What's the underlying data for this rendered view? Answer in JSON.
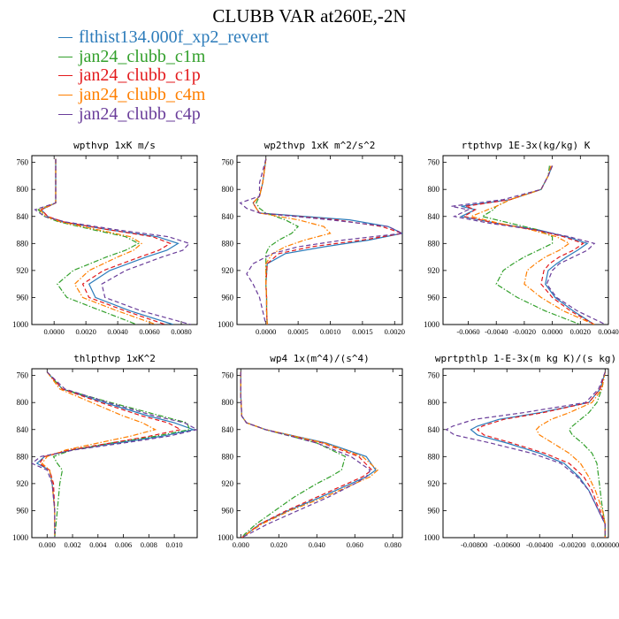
{
  "title": "CLUBB VAR at260E,-2N",
  "legend": [
    {
      "label": "flthist134.000f_xp2_revert",
      "color": "#2b7bba"
    },
    {
      "label": "jan24_clubb_c1m",
      "color": "#33a02c"
    },
    {
      "label": "jan24_clubb_c1p",
      "color": "#e31a1c"
    },
    {
      "label": "jan24_clubb_c4m",
      "color": "#ff7f00"
    },
    {
      "label": "jan24_clubb_c4p",
      "color": "#6a3d9a"
    }
  ],
  "chart_data": [
    {
      "type": "line",
      "title": "wpthvp  1xK m/s",
      "xlim": [
        -0.0014,
        0.009
      ],
      "xticks": [
        0.0,
        0.002,
        0.004,
        0.006,
        0.008
      ],
      "xtick_labels": [
        "0.0000",
        "0.0020",
        "0.0040",
        "0.0060",
        "0.0080"
      ],
      "ylim": [
        750,
        1000
      ],
      "yticks": [
        760,
        800,
        840,
        880,
        920,
        960,
        1000
      ],
      "y": [
        755,
        780,
        800,
        820,
        830,
        840,
        848,
        860,
        870,
        880,
        890,
        900,
        920,
        940,
        960,
        980,
        1000
      ],
      "series": [
        {
          "name": "flthist134.000f_xp2_revert",
          "style": "solid",
          "values": [
            0.0001,
            0.0001,
            0.0001,
            0.0001,
            -0.0008,
            -0.0004,
            0.0005,
            0.0035,
            0.0065,
            0.0078,
            0.0071,
            0.0058,
            0.0035,
            0.0022,
            0.0026,
            0.0048,
            0.0075
          ]
        },
        {
          "name": "jan24_clubb_c1m",
          "style": "dashdot",
          "values": [
            0.0001,
            0.0001,
            0.0001,
            0.0001,
            -0.001,
            -0.0006,
            0.0003,
            0.0025,
            0.0045,
            0.0053,
            0.0045,
            0.0033,
            0.0012,
            0.0002,
            0.0008,
            0.003,
            0.0052
          ]
        },
        {
          "name": "jan24_clubb_c1p",
          "style": "dashed",
          "values": [
            0.0001,
            0.0001,
            0.0001,
            0.0001,
            -0.0008,
            -0.0004,
            0.0006,
            0.0035,
            0.0062,
            0.0073,
            0.0066,
            0.0054,
            0.0031,
            0.0018,
            0.0022,
            0.0045,
            0.007
          ]
        },
        {
          "name": "jan24_clubb_c4m",
          "style": "dashdot",
          "values": [
            0.0001,
            0.0001,
            0.0001,
            0.0001,
            -0.0009,
            -0.0005,
            0.0004,
            0.0028,
            0.0048,
            0.0055,
            0.005,
            0.004,
            0.0022,
            0.0013,
            0.0018,
            0.004,
            0.0064
          ]
        },
        {
          "name": "jan24_clubb_c4p",
          "style": "dashed",
          "values": [
            0.0001,
            0.0001,
            0.0001,
            0.0001,
            -0.0012,
            -0.0006,
            0.0007,
            0.004,
            0.0072,
            0.0085,
            0.0081,
            0.0068,
            0.0045,
            0.003,
            0.0032,
            0.0055,
            0.0086
          ]
        }
      ]
    },
    {
      "type": "line",
      "title": "wp2thvp  1xK m^2/s^2",
      "xlim": [
        -0.00045,
        0.00212
      ],
      "xticks": [
        0.0,
        0.0005,
        0.001,
        0.0015,
        0.002
      ],
      "xtick_labels": [
        "0.0000",
        "0.0005",
        "0.0010",
        "0.0015",
        "0.0020"
      ],
      "ylim": [
        750,
        1000
      ],
      "yticks": [
        760,
        800,
        840,
        880,
        920,
        960,
        1000
      ],
      "y": [
        755,
        790,
        810,
        820,
        828,
        835,
        845,
        855,
        865,
        875,
        885,
        895,
        910,
        925,
        940,
        960,
        980,
        1000
      ],
      "series": [
        {
          "name": "flthist134.000f_xp2_revert",
          "style": "solid",
          "values": [
            0.0,
            -5e-05,
            -0.0001,
            -0.0002,
            -0.00015,
            -0.0001,
            0.0013,
            0.0019,
            0.00212,
            0.0016,
            0.0009,
            0.0003,
            2e-05,
            1e-05,
            0.0,
            1e-05,
            1e-05,
            2e-05
          ]
        },
        {
          "name": "jan24_clubb_c1m",
          "style": "dashdot",
          "values": [
            0.0,
            -5e-05,
            -0.0001,
            -0.00015,
            -0.0001,
            0.0,
            0.0003,
            0.0005,
            0.0004,
            0.0002,
            5e-05,
            0.0,
            0.0,
            0.0,
            0.0,
            1e-05,
            1e-05,
            2e-05
          ]
        },
        {
          "name": "jan24_clubb_c1p",
          "style": "dashed",
          "values": [
            0.0,
            -5e-05,
            -0.0001,
            -0.0002,
            -0.00015,
            -0.0001,
            0.0011,
            0.0018,
            0.00212,
            0.0015,
            0.0007,
            0.0002,
            2e-05,
            1e-05,
            0.0,
            1e-05,
            1e-05,
            2e-05
          ]
        },
        {
          "name": "jan24_clubb_c4m",
          "style": "dashdot",
          "values": [
            0.0,
            -5e-05,
            -0.0001,
            -0.0002,
            -0.00015,
            -0.0001,
            0.0005,
            0.0009,
            0.001,
            0.0006,
            0.0003,
            0.0001,
            0.0,
            0.0,
            0.0,
            1e-05,
            1e-05,
            2e-05
          ]
        },
        {
          "name": "jan24_clubb_c4p",
          "style": "dashed",
          "values": [
            0.0,
            -0.0001,
            -0.0001,
            -0.0004,
            -0.0003,
            -0.0001,
            0.001,
            0.0019,
            0.00212,
            0.0012,
            0.0005,
            0.0001,
            -0.0002,
            -0.0003,
            -0.0002,
            -0.0001,
            -5e-05,
            0.0
          ]
        }
      ]
    },
    {
      "type": "line",
      "title": "rtpthvp  1E-3x(kg/kg) K",
      "xlim": [
        -0.0078,
        0.004
      ],
      "xticks": [
        -0.006,
        -0.004,
        -0.002,
        0.0,
        0.002,
        0.004
      ],
      "xtick_labels": [
        "-0.0060",
        "-0.0040",
        "-0.0020",
        "0.0000",
        "0.0020",
        "0.0040"
      ],
      "ylim": [
        750,
        1000
      ],
      "yticks": [
        760,
        800,
        840,
        880,
        920,
        960,
        1000
      ],
      "y": [
        765,
        780,
        800,
        815,
        825,
        830,
        840,
        850,
        860,
        870,
        880,
        890,
        900,
        910,
        920,
        940,
        960,
        980,
        1000
      ],
      "series": [
        {
          "name": "flthist134.000f_xp2_revert",
          "style": "solid",
          "values": [
            0.0,
            -0.0003,
            -0.0008,
            -0.003,
            -0.0065,
            -0.0055,
            -0.0065,
            -0.004,
            -0.001,
            0.001,
            0.0025,
            0.0018,
            0.001,
            0.0003,
            -0.0003,
            -0.0005,
            0.0002,
            0.0015,
            0.003
          ]
        },
        {
          "name": "jan24_clubb_c1m",
          "style": "dashdot",
          "values": [
            -0.0002,
            -0.0003,
            -0.0008,
            -0.003,
            -0.004,
            -0.0042,
            -0.005,
            -0.003,
            -0.001,
            0.0,
            0.0,
            -0.001,
            -0.002,
            -0.0028,
            -0.0035,
            -0.004,
            -0.0025,
            -0.0005,
            0.002
          ]
        },
        {
          "name": "jan24_clubb_c1p",
          "style": "dashed",
          "values": [
            0.0,
            -0.0003,
            -0.0008,
            -0.003,
            -0.0062,
            -0.0055,
            -0.0063,
            -0.004,
            -0.0012,
            0.0008,
            0.0022,
            0.0015,
            0.0005,
            -0.0002,
            -0.0006,
            -0.0008,
            0.0,
            0.0013,
            0.003
          ]
        },
        {
          "name": "jan24_clubb_c4m",
          "style": "dashdot",
          "values": [
            -0.0001,
            -0.0003,
            -0.0008,
            -0.003,
            -0.004,
            -0.0046,
            -0.0058,
            -0.0038,
            -0.0015,
            0.0003,
            0.0012,
            0.0005,
            -0.0005,
            -0.0012,
            -0.0018,
            -0.002,
            -0.0008,
            0.0008,
            0.003
          ]
        },
        {
          "name": "jan24_clubb_c4p",
          "style": "dashed",
          "values": [
            0.0,
            -0.0003,
            -0.0008,
            -0.0035,
            -0.0072,
            -0.006,
            -0.007,
            -0.0045,
            -0.0012,
            0.0012,
            0.003,
            0.0025,
            0.0015,
            0.0005,
            0.0,
            -0.0004,
            0.0003,
            0.0018,
            0.0038
          ]
        }
      ]
    },
    {
      "type": "line",
      "title": "thlpthvp  1xK^2",
      "xlim": [
        -0.0012,
        0.0118
      ],
      "xticks": [
        0.0,
        0.002,
        0.004,
        0.006,
        0.008,
        0.01
      ],
      "xtick_labels": [
        "0.000",
        "0.002",
        "0.004",
        "0.006",
        "0.008",
        "0.010"
      ],
      "ylim": [
        750,
        1000
      ],
      "yticks": [
        760,
        800,
        840,
        880,
        920,
        960,
        1000
      ],
      "y": [
        755,
        780,
        800,
        820,
        830,
        840,
        850,
        860,
        870,
        880,
        890,
        900,
        920,
        960,
        1000
      ],
      "series": [
        {
          "name": "flthist134.000f_xp2_revert",
          "style": "solid",
          "values": [
            0.0,
            0.0012,
            0.0045,
            0.008,
            0.01,
            0.0115,
            0.009,
            0.0055,
            0.002,
            -0.0002,
            -0.0008,
            0.0002,
            0.0004,
            0.0006,
            0.0006
          ]
        },
        {
          "name": "jan24_clubb_c1m",
          "style": "dashdot",
          "values": [
            0.0,
            0.0012,
            0.005,
            0.009,
            0.011,
            0.0112,
            0.0085,
            0.005,
            0.002,
            0.0005,
            0.0008,
            0.0012,
            0.001,
            0.0008,
            0.0006
          ]
        },
        {
          "name": "jan24_clubb_c1p",
          "style": "dashed",
          "values": [
            0.0,
            0.0012,
            0.0042,
            0.0075,
            0.0095,
            0.0105,
            0.008,
            0.005,
            0.0018,
            -0.0002,
            -0.0006,
            0.0002,
            0.0005,
            0.0006,
            0.0006
          ]
        },
        {
          "name": "jan24_clubb_c4m",
          "style": "dashdot",
          "values": [
            0.0,
            0.001,
            0.0035,
            0.006,
            0.0075,
            0.0085,
            0.0065,
            0.004,
            0.0015,
            0.0,
            -0.0004,
            0.0002,
            0.0004,
            0.0006,
            0.0006
          ]
        },
        {
          "name": "jan24_clubb_c4p",
          "style": "dashed",
          "values": [
            0.0,
            0.0014,
            0.0048,
            0.0085,
            0.0108,
            0.0118,
            0.0095,
            0.006,
            0.0022,
            -0.0005,
            -0.0012,
            0.0,
            0.0004,
            0.0006,
            0.0006
          ]
        }
      ]
    },
    {
      "type": "line",
      "title": "wp4  1x(m^4)/(s^4)",
      "xlim": [
        -0.002,
        0.085
      ],
      "xticks": [
        0.0,
        0.02,
        0.04,
        0.06,
        0.08
      ],
      "xtick_labels": [
        "0.000",
        "0.020",
        "0.040",
        "0.060",
        "0.080"
      ],
      "ylim": [
        750,
        1000
      ],
      "yticks": [
        760,
        800,
        840,
        880,
        920,
        960,
        1000
      ],
      "y": [
        755,
        790,
        820,
        830,
        840,
        860,
        880,
        900,
        910,
        920,
        940,
        960,
        980,
        995,
        1000
      ],
      "series": [
        {
          "name": "flthist134.000f_xp2_revert",
          "style": "solid",
          "values": [
            0.0,
            0.0,
            0.0005,
            0.003,
            0.013,
            0.045,
            0.066,
            0.071,
            0.066,
            0.058,
            0.042,
            0.025,
            0.01,
            0.003,
            0.0005
          ]
        },
        {
          "name": "jan24_clubb_c1m",
          "style": "dashdot",
          "values": [
            0.0,
            0.0,
            0.0005,
            0.003,
            0.013,
            0.04,
            0.055,
            0.053,
            0.047,
            0.04,
            0.028,
            0.018,
            0.008,
            0.002,
            0.0005
          ]
        },
        {
          "name": "jan24_clubb_c1p",
          "style": "dashed",
          "values": [
            0.0,
            0.0,
            0.0005,
            0.003,
            0.013,
            0.043,
            0.062,
            0.069,
            0.064,
            0.056,
            0.04,
            0.024,
            0.01,
            0.003,
            0.0005
          ]
        },
        {
          "name": "jan24_clubb_c4m",
          "style": "dashdot",
          "values": [
            0.0,
            0.0,
            0.0005,
            0.003,
            0.013,
            0.044,
            0.064,
            0.072,
            0.068,
            0.06,
            0.044,
            0.026,
            0.011,
            0.003,
            0.0005
          ]
        },
        {
          "name": "jan24_clubb_c4p",
          "style": "dashed",
          "values": [
            0.0,
            0.0,
            0.0005,
            0.003,
            0.013,
            0.04,
            0.058,
            0.068,
            0.066,
            0.06,
            0.046,
            0.03,
            0.014,
            0.004,
            0.0005
          ]
        }
      ]
    },
    {
      "type": "line",
      "title": "wprtpthlp  1-E-3x(m kg K)/(s kg)",
      "xlim": [
        -0.0099,
        0.0002
      ],
      "xticks": [
        -0.008,
        -0.006,
        -0.004,
        -0.002,
        0.0
      ],
      "xtick_labels": [
        "-0.00800",
        "-0.00600",
        "-0.00400",
        "-0.00200",
        "0.000000"
      ],
      "ylim": [
        750,
        1000
      ],
      "yticks": [
        760,
        800,
        840,
        880,
        920,
        960,
        1000
      ],
      "y": [
        755,
        780,
        800,
        815,
        825,
        835,
        840,
        848,
        860,
        875,
        890,
        910,
        930,
        950,
        965,
        980,
        1000
      ],
      "series": [
        {
          "name": "flthist134.000f_xp2_revert",
          "style": "solid",
          "values": [
            0.0,
            -0.0003,
            -0.001,
            -0.004,
            -0.0065,
            -0.0078,
            -0.0082,
            -0.0078,
            -0.006,
            -0.004,
            -0.0025,
            -0.0016,
            -0.001,
            -0.0006,
            -0.0003,
            0.0,
            0.0
          ]
        },
        {
          "name": "jan24_clubb_c1m",
          "style": "dashdot",
          "values": [
            0.0,
            -0.0002,
            -0.0005,
            -0.001,
            -0.0015,
            -0.002,
            -0.0022,
            -0.002,
            -0.0014,
            -0.0008,
            -0.0005,
            -0.0004,
            -0.0003,
            -0.0002,
            -0.0001,
            0.0,
            0.0
          ]
        },
        {
          "name": "jan24_clubb_c1p",
          "style": "dashed",
          "values": [
            0.0,
            -0.0003,
            -0.001,
            -0.0038,
            -0.0062,
            -0.0075,
            -0.0078,
            -0.0074,
            -0.0057,
            -0.0037,
            -0.0022,
            -0.0013,
            -0.0008,
            -0.0005,
            -0.0002,
            0.0,
            0.0
          ]
        },
        {
          "name": "jan24_clubb_c4m",
          "style": "dashdot",
          "values": [
            0.0,
            -0.0002,
            -0.0008,
            -0.0022,
            -0.0033,
            -0.004,
            -0.0042,
            -0.004,
            -0.0032,
            -0.0022,
            -0.0015,
            -0.001,
            -0.0006,
            -0.0003,
            -0.0001,
            0.0,
            0.0
          ]
        },
        {
          "name": "jan24_clubb_c4p",
          "style": "dashed",
          "values": [
            0.0,
            -0.0004,
            -0.0012,
            -0.005,
            -0.008,
            -0.0093,
            -0.0097,
            -0.0092,
            -0.007,
            -0.0045,
            -0.0027,
            -0.0017,
            -0.001,
            -0.0006,
            -0.0003,
            0.0,
            0.0
          ]
        }
      ]
    }
  ]
}
